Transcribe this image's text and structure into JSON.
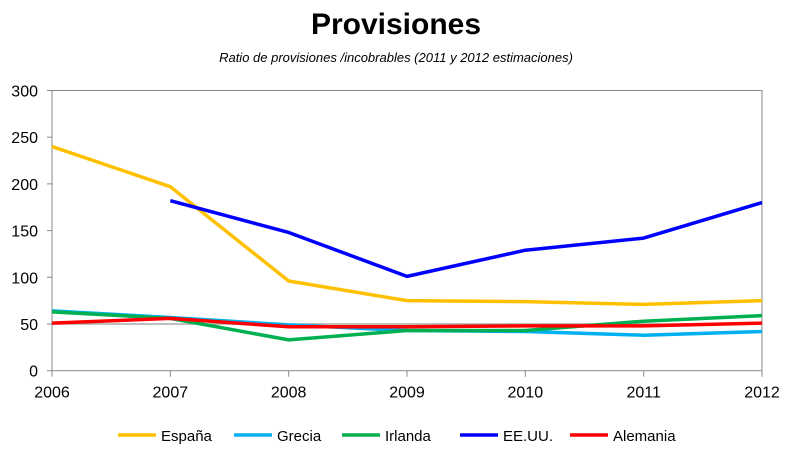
{
  "chart_data": {
    "type": "line",
    "title": "Provisiones",
    "subtitle": "Ratio de provisiones /incobrables (2011 y 2012 estimaciones)",
    "xlabel": "",
    "ylabel": "",
    "x": [
      "2006",
      "2007",
      "2008",
      "2009",
      "2010",
      "2011",
      "2012"
    ],
    "ylim": [
      0,
      300
    ],
    "yticks": [
      "0",
      "50",
      "100",
      "150",
      "200",
      "250",
      "300"
    ],
    "legend_position": "bottom",
    "series": [
      {
        "name": "España",
        "color": "#FFC000",
        "values": [
          240,
          197,
          96,
          75,
          74,
          71,
          75
        ]
      },
      {
        "name": "Grecia",
        "color": "#00B0F0",
        "values": [
          64,
          57,
          49,
          43,
          42,
          38,
          42
        ]
      },
      {
        "name": "Irlanda",
        "color": "#00B050",
        "values": [
          63,
          56,
          33,
          43,
          43,
          53,
          59
        ]
      },
      {
        "name": "EE.UU.",
        "color": "#0000FF",
        "values": [
          null,
          182,
          148,
          101,
          129,
          142,
          180
        ]
      },
      {
        "name": "Alemania",
        "color": "#FF0000",
        "values": [
          51,
          56,
          47,
          47,
          48,
          48,
          51
        ]
      }
    ]
  }
}
